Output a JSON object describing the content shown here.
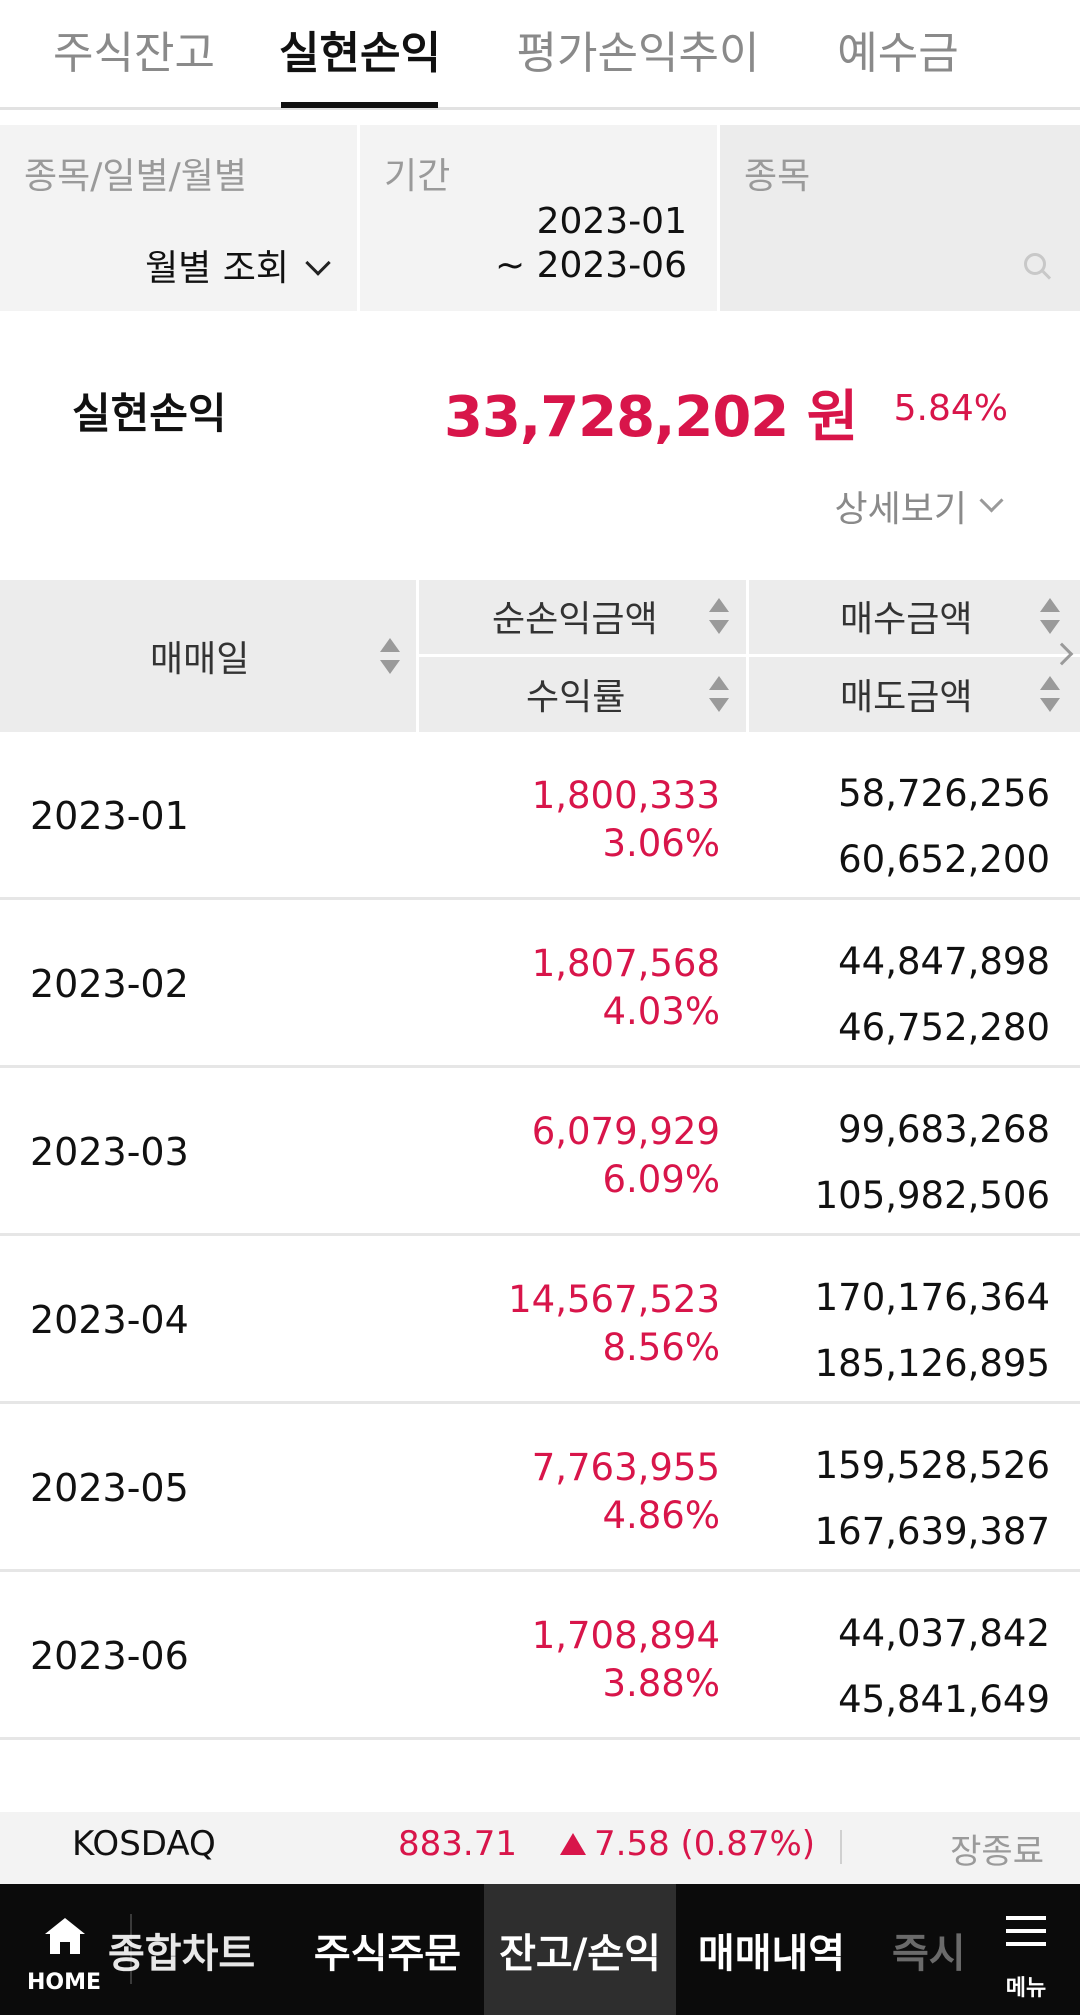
{
  "tabs": [
    {
      "label": "주식잔고"
    },
    {
      "label": "실현손익"
    },
    {
      "label": "평가손익추이"
    },
    {
      "label": "예수금"
    }
  ],
  "active_tab": "실현손익",
  "filters": {
    "type": {
      "label": "종목/일별/월별",
      "value": "월별 조회"
    },
    "period": {
      "label": "기간",
      "start": "2023-01",
      "end": "~ 2023-06"
    },
    "stock": {
      "label": "종목",
      "placeholder": ""
    }
  },
  "summary": {
    "label": "실현손익",
    "amount": "33,728,202 원",
    "rate": "5.84%",
    "detail_label": "상세보기"
  },
  "table": {
    "headers": {
      "date": "매매일",
      "net_profit": "순손익금액",
      "return_rate": "수익률",
      "buy_amount": "매수금액",
      "sell_amount": "매도금액"
    },
    "rows": [
      {
        "date": "2023-01",
        "net_profit": "1,800,333",
        "return_rate": "3.06%",
        "buy_amount": "58,726,256",
        "sell_amount": "60,652,200"
      },
      {
        "date": "2023-02",
        "net_profit": "1,807,568",
        "return_rate": "4.03%",
        "buy_amount": "44,847,898",
        "sell_amount": "46,752,280"
      },
      {
        "date": "2023-03",
        "net_profit": "6,079,929",
        "return_rate": "6.09%",
        "buy_amount": "99,683,268",
        "sell_amount": "105,982,506"
      },
      {
        "date": "2023-04",
        "net_profit": "14,567,523",
        "return_rate": "8.56%",
        "buy_amount": "170,176,364",
        "sell_amount": "185,126,895"
      },
      {
        "date": "2023-05",
        "net_profit": "7,763,955",
        "return_rate": "4.86%",
        "buy_amount": "159,528,526",
        "sell_amount": "167,639,387"
      },
      {
        "date": "2023-06",
        "net_profit": "1,708,894",
        "return_rate": "3.88%",
        "buy_amount": "44,037,842",
        "sell_amount": "45,841,649"
      }
    ]
  },
  "ticker": {
    "name": "KOSDAQ",
    "price": "883.71",
    "change": "7.58 (0.87%)",
    "status": "장종료"
  },
  "bottom_nav": {
    "home_label": "HOME",
    "items": [
      {
        "label": "종합차트"
      },
      {
        "label": "주식주문"
      },
      {
        "label": "잔고/손익"
      },
      {
        "label": "매매내역"
      },
      {
        "label": "즉시"
      }
    ],
    "menu_label": "메뉴"
  },
  "colors": {
    "accent_red": "#d8154a",
    "header_bg": "#ececec",
    "nav_bg": "#0b0b0b"
  },
  "icons": [
    "chevron-down-icon",
    "search-icon",
    "sort-icon",
    "chevron-right-icon",
    "up-triangle-icon",
    "home-icon",
    "menu-icon"
  ]
}
